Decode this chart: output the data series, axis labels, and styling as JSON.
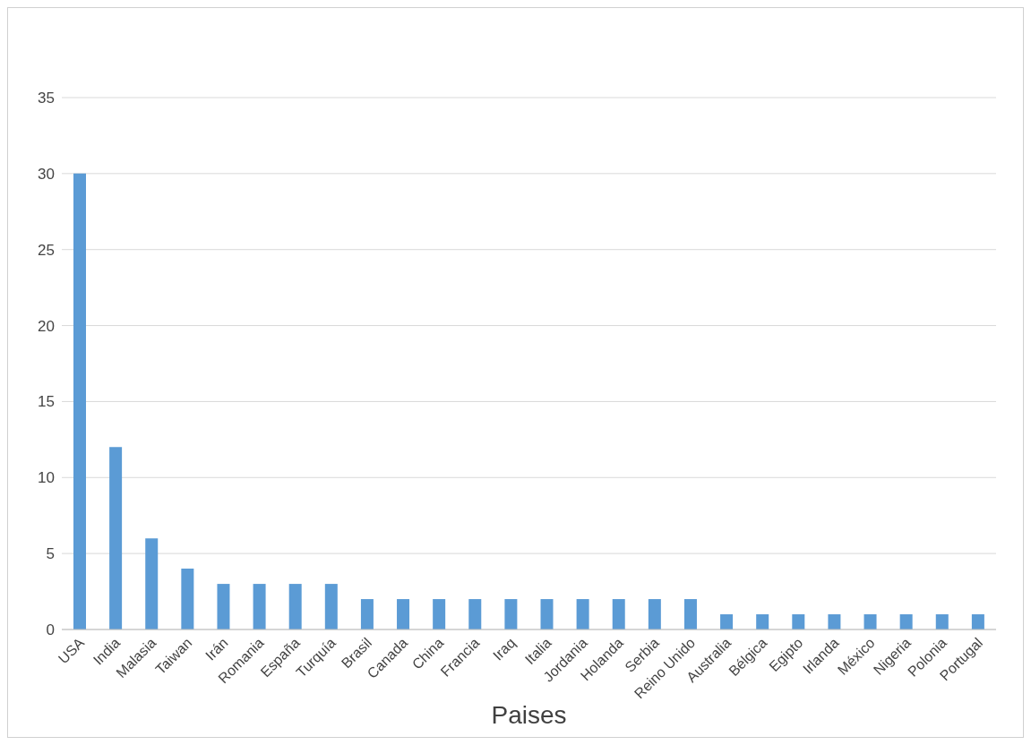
{
  "chart_data": {
    "type": "bar",
    "xlabel": "Paises",
    "categories": [
      "USA",
      "India",
      "Malasia",
      "Taiwan",
      "Irán",
      "Romania",
      "España",
      "Turquía",
      "Brasil",
      "Canada",
      "China",
      "Francia",
      "Iraq",
      "Italia",
      "Jordania",
      "Holanda",
      "Serbia",
      "Reino Unido",
      "Australia",
      "Bélgica",
      "Egipto",
      "Irlanda",
      "México",
      "Nigeria",
      "Polonia",
      "Portugal"
    ],
    "values": [
      30,
      12,
      6,
      4,
      3,
      3,
      3,
      3,
      2,
      2,
      2,
      2,
      2,
      2,
      2,
      2,
      2,
      2,
      1,
      1,
      1,
      1,
      1,
      1,
      1,
      1
    ],
    "color": "#5b9bd5",
    "ylim": [
      0,
      35
    ],
    "yticks": [
      0,
      5,
      10,
      15,
      20,
      25,
      30,
      35
    ],
    "grid": "y"
  }
}
